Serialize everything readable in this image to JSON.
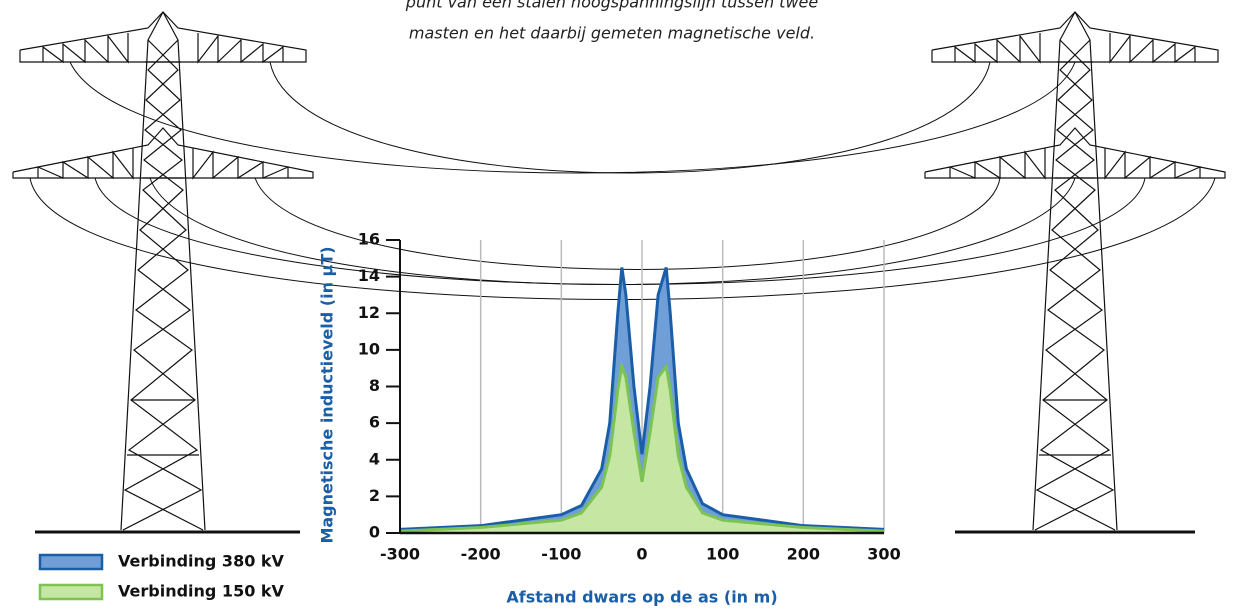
{
  "chart_data": {
    "type": "area",
    "caption": [
      "punt van een stalen hoogspanningslijn tussen twee",
      "masten en het daarbij gemeten magnetische veld."
    ],
    "x_label": "Afstand dwars op de as (in m)",
    "y_label": "Magnetische inductieveld (in µT)",
    "x": [
      -300,
      -200,
      -100,
      -75,
      -50,
      -40,
      -30,
      -25,
      -20,
      -10,
      0,
      10,
      20,
      30,
      35,
      45,
      55,
      75,
      100,
      200,
      300
    ],
    "series": [
      {
        "name": "Verbinding 380 kV",
        "color": "#6f9fd6",
        "line_color": "#1a5ea8",
        "values": [
          0.2,
          0.4,
          1.0,
          1.5,
          3.5,
          6,
          12,
          14.5,
          13,
          8,
          4.3,
          8,
          13,
          14.5,
          12,
          6,
          3.5,
          1.6,
          1.0,
          0.4,
          0.2
        ]
      },
      {
        "name": "Verbinding 150 kV",
        "color": "#c6e6a4",
        "line_color": "#7cc353",
        "values": [
          0.1,
          0.3,
          0.7,
          1.1,
          2.5,
          4.2,
          7.8,
          9.1,
          8.5,
          5.5,
          2.8,
          5.5,
          8.5,
          9.1,
          7.8,
          4.2,
          2.5,
          1.1,
          0.7,
          0.3,
          0.1
        ]
      }
    ],
    "xlim": [
      -300,
      300
    ],
    "xticks": [
      -300,
      -200,
      -100,
      0,
      100,
      200,
      300
    ],
    "ylim": [
      0,
      16
    ],
    "yticks": [
      0,
      2,
      4,
      6,
      8,
      10,
      12,
      14,
      16
    ],
    "grid": true
  }
}
